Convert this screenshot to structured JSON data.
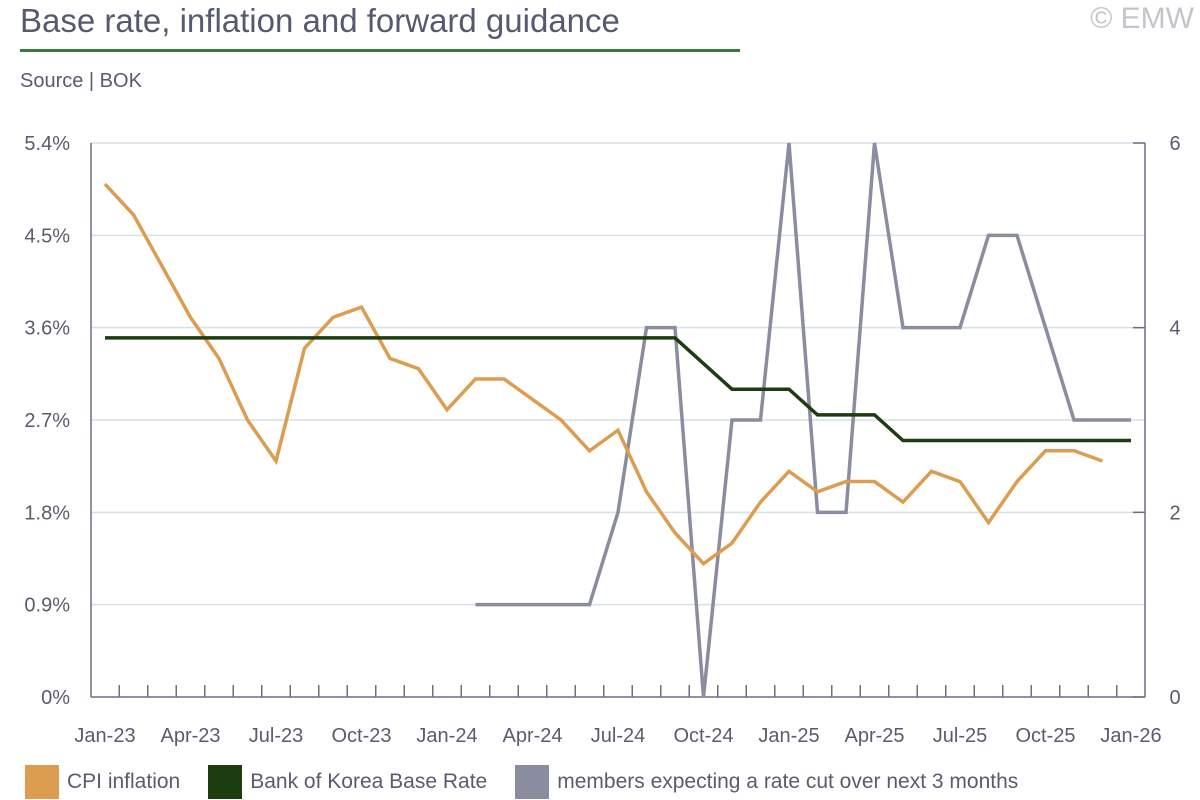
{
  "header": {
    "title": "Base rate, inflation and forward guidance",
    "source": "Source | BOK",
    "copyright": "© EMW"
  },
  "colors": {
    "cpi": "#dc9d50",
    "base": "#1d3d10",
    "members": "#8a8c9f",
    "grid": "#d5e0e8",
    "axis": "#6b6f80"
  },
  "chart_data": {
    "type": "line",
    "title": "Base rate, inflation and forward guidance",
    "x": [
      "Jan-23",
      "Feb-23",
      "Mar-23",
      "Apr-23",
      "May-23",
      "Jun-23",
      "Jul-23",
      "Aug-23",
      "Sep-23",
      "Oct-23",
      "Nov-23",
      "Dec-23",
      "Jan-24",
      "Feb-24",
      "Mar-24",
      "Apr-24",
      "May-24",
      "Jun-24",
      "Jul-24",
      "Aug-24",
      "Sep-24",
      "Oct-24",
      "Nov-24",
      "Dec-24",
      "Jan-25",
      "Feb-25",
      "Mar-25",
      "Apr-25",
      "May-25",
      "Jun-25",
      "Jul-25",
      "Aug-25",
      "Sep-25",
      "Oct-25",
      "Nov-25",
      "Dec-25",
      "Jan-26"
    ],
    "x_tick_labels": [
      "Jan-23",
      "Apr-23",
      "Jul-23",
      "Oct-23",
      "Jan-24",
      "Apr-24",
      "Jul-24",
      "Oct-24",
      "Jan-25",
      "Apr-25",
      "Jul-25",
      "Oct-25",
      "Jan-26"
    ],
    "y_left": {
      "ticks": [
        "0%",
        "0.9%",
        "1.8%",
        "2.7%",
        "3.6%",
        "4.5%",
        "5.4%"
      ],
      "range": [
        0,
        5.4
      ]
    },
    "y_right": {
      "ticks": [
        "0",
        "2",
        "4",
        "6"
      ],
      "range": [
        0,
        6
      ]
    },
    "grid": true,
    "legend_position": "bottom",
    "series": [
      {
        "name": "CPI inflation",
        "axis": "left",
        "values": [
          5.0,
          4.7,
          4.2,
          3.7,
          3.3,
          2.7,
          2.3,
          3.4,
          3.7,
          3.8,
          3.3,
          3.2,
          2.8,
          3.1,
          3.1,
          2.9,
          2.7,
          2.4,
          2.6,
          2.0,
          1.6,
          1.3,
          1.5,
          1.9,
          2.2,
          2.0,
          2.1,
          2.1,
          1.9,
          2.2,
          2.1,
          1.7,
          2.1,
          2.4,
          2.4,
          2.3,
          null
        ]
      },
      {
        "name": "Bank of Korea Base Rate",
        "axis": "left",
        "values": [
          3.5,
          3.5,
          3.5,
          3.5,
          3.5,
          3.5,
          3.5,
          3.5,
          3.5,
          3.5,
          3.5,
          3.5,
          3.5,
          3.5,
          3.5,
          3.5,
          3.5,
          3.5,
          3.5,
          3.5,
          3.5,
          3.25,
          3.0,
          3.0,
          3.0,
          2.75,
          2.75,
          2.75,
          2.5,
          2.5,
          2.5,
          2.5,
          2.5,
          2.5,
          2.5,
          2.5,
          2.5
        ]
      },
      {
        "name": "members expecting a rate cut over next 3 months",
        "axis": "right",
        "values": [
          null,
          null,
          null,
          null,
          null,
          null,
          null,
          null,
          null,
          null,
          null,
          null,
          null,
          1,
          1,
          1,
          1,
          1,
          2,
          4,
          4,
          0,
          3,
          3,
          6,
          2,
          2,
          6,
          4,
          4,
          4,
          5,
          5,
          4,
          3,
          3,
          3
        ]
      }
    ]
  }
}
